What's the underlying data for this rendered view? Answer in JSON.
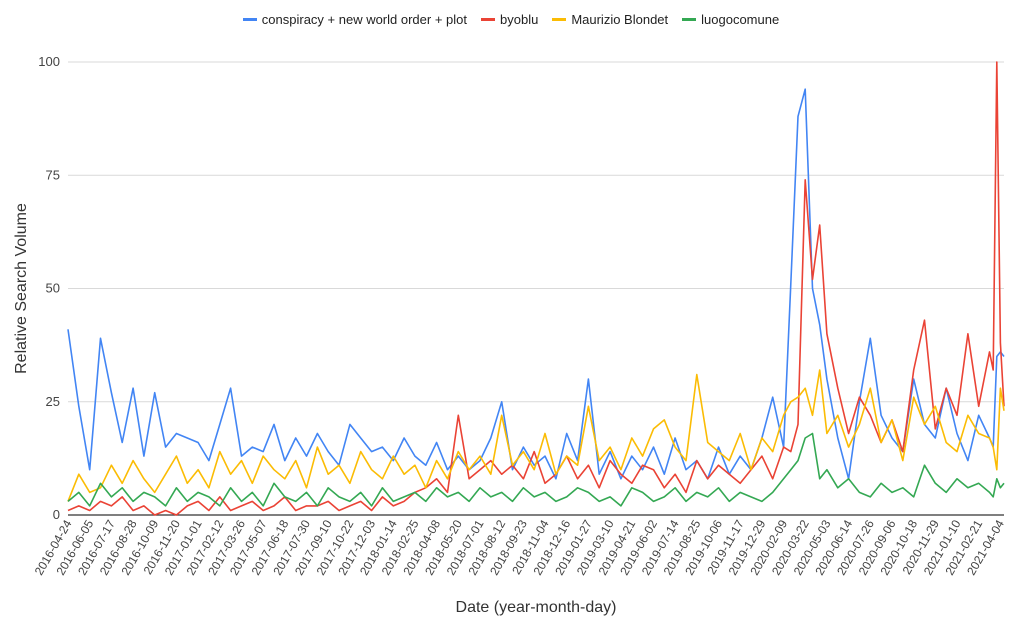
{
  "chart_data": {
    "type": "line",
    "title": "",
    "xlabel": "Date (year-month-day)",
    "ylabel": "Relative Search Volume",
    "ylim": [
      0,
      100
    ],
    "yticks": [
      0,
      25,
      50,
      75,
      100
    ],
    "xlim": [
      "2016-04-24",
      "2021-04-11"
    ],
    "grid": true,
    "legend_position": "top",
    "x_tick_labels": [
      "2016-04-24",
      "2016-06-05",
      "2016-07-17",
      "2016-08-28",
      "2016-10-09",
      "2016-11-20",
      "2017-01-01",
      "2017-02-12",
      "2017-03-26",
      "2017-05-07",
      "2017-06-18",
      "2017-07-30",
      "2017-09-10",
      "2017-10-22",
      "2017-12-03",
      "2018-01-14",
      "2018-02-25",
      "2018-04-08",
      "2018-05-20",
      "2018-07-01",
      "2018-08-12",
      "2018-09-23",
      "2018-11-04",
      "2018-12-16",
      "2019-01-27",
      "2019-03-10",
      "2019-04-21",
      "2019-06-02",
      "2019-07-14",
      "2019-08-25",
      "2019-10-06",
      "2019-11-17",
      "2019-12-29",
      "2020-02-09",
      "2020-03-22",
      "2020-05-03",
      "2020-06-14",
      "2020-07-26",
      "2020-09-06",
      "2020-10-18",
      "2020-11-29",
      "2021-01-10",
      "2021-02-21",
      "2021-04-04"
    ],
    "x": [
      "2016-04-24",
      "2016-05-15",
      "2016-06-05",
      "2016-06-26",
      "2016-07-17",
      "2016-08-07",
      "2016-08-28",
      "2016-09-18",
      "2016-10-09",
      "2016-10-30",
      "2016-11-20",
      "2016-12-11",
      "2017-01-01",
      "2017-01-22",
      "2017-02-12",
      "2017-03-05",
      "2017-03-26",
      "2017-04-16",
      "2017-05-07",
      "2017-05-28",
      "2017-06-18",
      "2017-07-09",
      "2017-07-30",
      "2017-08-20",
      "2017-09-10",
      "2017-10-01",
      "2017-10-22",
      "2017-11-12",
      "2017-12-03",
      "2017-12-24",
      "2018-01-14",
      "2018-02-04",
      "2018-02-25",
      "2018-03-18",
      "2018-04-08",
      "2018-04-29",
      "2018-05-20",
      "2018-06-10",
      "2018-07-01",
      "2018-07-22",
      "2018-08-12",
      "2018-09-02",
      "2018-09-23",
      "2018-10-14",
      "2018-11-04",
      "2018-11-25",
      "2018-12-16",
      "2019-01-06",
      "2019-01-27",
      "2019-02-17",
      "2019-03-10",
      "2019-03-31",
      "2019-04-21",
      "2019-05-12",
      "2019-06-02",
      "2019-06-23",
      "2019-07-14",
      "2019-08-04",
      "2019-08-25",
      "2019-09-15",
      "2019-10-06",
      "2019-10-27",
      "2019-11-17",
      "2019-12-08",
      "2019-12-29",
      "2020-01-19",
      "2020-02-09",
      "2020-02-23",
      "2020-03-08",
      "2020-03-22",
      "2020-04-05",
      "2020-04-19",
      "2020-05-03",
      "2020-05-24",
      "2020-06-14",
      "2020-07-05",
      "2020-07-26",
      "2020-08-16",
      "2020-09-06",
      "2020-09-27",
      "2020-10-18",
      "2020-11-08",
      "2020-11-29",
      "2020-12-20",
      "2021-01-10",
      "2021-01-31",
      "2021-02-21",
      "2021-03-14",
      "2021-03-21",
      "2021-03-28",
      "2021-04-04",
      "2021-04-11"
    ],
    "series": [
      {
        "name": "conspiracy + new world order + plot",
        "color": "#4285f4",
        "values": [
          41,
          24,
          10,
          39,
          27,
          16,
          28,
          13,
          27,
          15,
          18,
          17,
          16,
          12,
          20,
          28,
          13,
          15,
          14,
          20,
          12,
          17,
          13,
          18,
          14,
          11,
          20,
          17,
          14,
          15,
          12,
          17,
          13,
          11,
          16,
          10,
          13,
          10,
          12,
          17,
          25,
          10,
          15,
          11,
          13,
          8,
          18,
          12,
          30,
          9,
          14,
          8,
          13,
          10,
          15,
          9,
          17,
          10,
          12,
          8,
          15,
          9,
          13,
          10,
          17,
          26,
          15,
          51,
          88,
          94,
          50,
          42,
          30,
          17,
          8,
          25,
          39,
          22,
          17,
          14,
          30,
          20,
          17,
          28,
          18,
          12,
          22,
          17,
          15,
          35,
          36,
          35
        ]
      },
      {
        "name": "byoblu",
        "color": "#ea4335",
        "values": [
          1,
          2,
          1,
          3,
          2,
          4,
          1,
          2,
          0,
          1,
          0,
          2,
          3,
          1,
          4,
          1,
          2,
          3,
          1,
          2,
          4,
          1,
          2,
          2,
          3,
          1,
          2,
          3,
          1,
          4,
          2,
          3,
          5,
          6,
          8,
          5,
          22,
          8,
          10,
          12,
          9,
          11,
          8,
          14,
          7,
          9,
          13,
          8,
          11,
          6,
          12,
          9,
          7,
          11,
          10,
          6,
          9,
          5,
          12,
          8,
          11,
          9,
          7,
          10,
          13,
          8,
          15,
          14,
          20,
          74,
          52,
          64,
          40,
          28,
          18,
          26,
          22,
          16,
          21,
          14,
          32,
          43,
          19,
          28,
          22,
          40,
          24,
          36,
          32,
          100,
          38,
          24
        ]
      },
      {
        "name": "Maurizio Blondet",
        "color": "#fbbc04",
        "values": [
          3,
          9,
          5,
          6,
          11,
          7,
          12,
          8,
          5,
          9,
          13,
          7,
          10,
          6,
          14,
          9,
          12,
          7,
          13,
          10,
          8,
          12,
          6,
          15,
          9,
          11,
          7,
          14,
          10,
          8,
          13,
          9,
          11,
          6,
          12,
          8,
          14,
          10,
          13,
          9,
          22,
          11,
          14,
          10,
          18,
          9,
          13,
          11,
          24,
          12,
          15,
          10,
          17,
          13,
          19,
          21,
          15,
          12,
          31,
          16,
          14,
          12,
          18,
          10,
          17,
          14,
          22,
          25,
          26,
          28,
          22,
          32,
          18,
          22,
          15,
          20,
          28,
          16,
          21,
          12,
          26,
          20,
          24,
          16,
          14,
          22,
          18,
          17,
          15,
          10,
          28,
          23
        ]
      },
      {
        "name": "luogocomune",
        "color": "#34a853",
        "values": [
          3,
          5,
          2,
          7,
          4,
          6,
          3,
          5,
          4,
          2,
          6,
          3,
          5,
          4,
          2,
          6,
          3,
          5,
          2,
          7,
          4,
          3,
          5,
          2,
          6,
          4,
          3,
          5,
          2,
          6,
          3,
          4,
          5,
          3,
          6,
          4,
          5,
          3,
          6,
          4,
          5,
          3,
          6,
          4,
          5,
          3,
          4,
          6,
          5,
          3,
          4,
          2,
          6,
          5,
          3,
          4,
          6,
          3,
          5,
          4,
          6,
          3,
          5,
          4,
          3,
          5,
          8,
          10,
          12,
          17,
          18,
          8,
          10,
          6,
          8,
          5,
          4,
          7,
          5,
          6,
          4,
          11,
          7,
          5,
          8,
          6,
          7,
          5,
          4,
          8,
          6,
          7
        ]
      }
    ]
  }
}
